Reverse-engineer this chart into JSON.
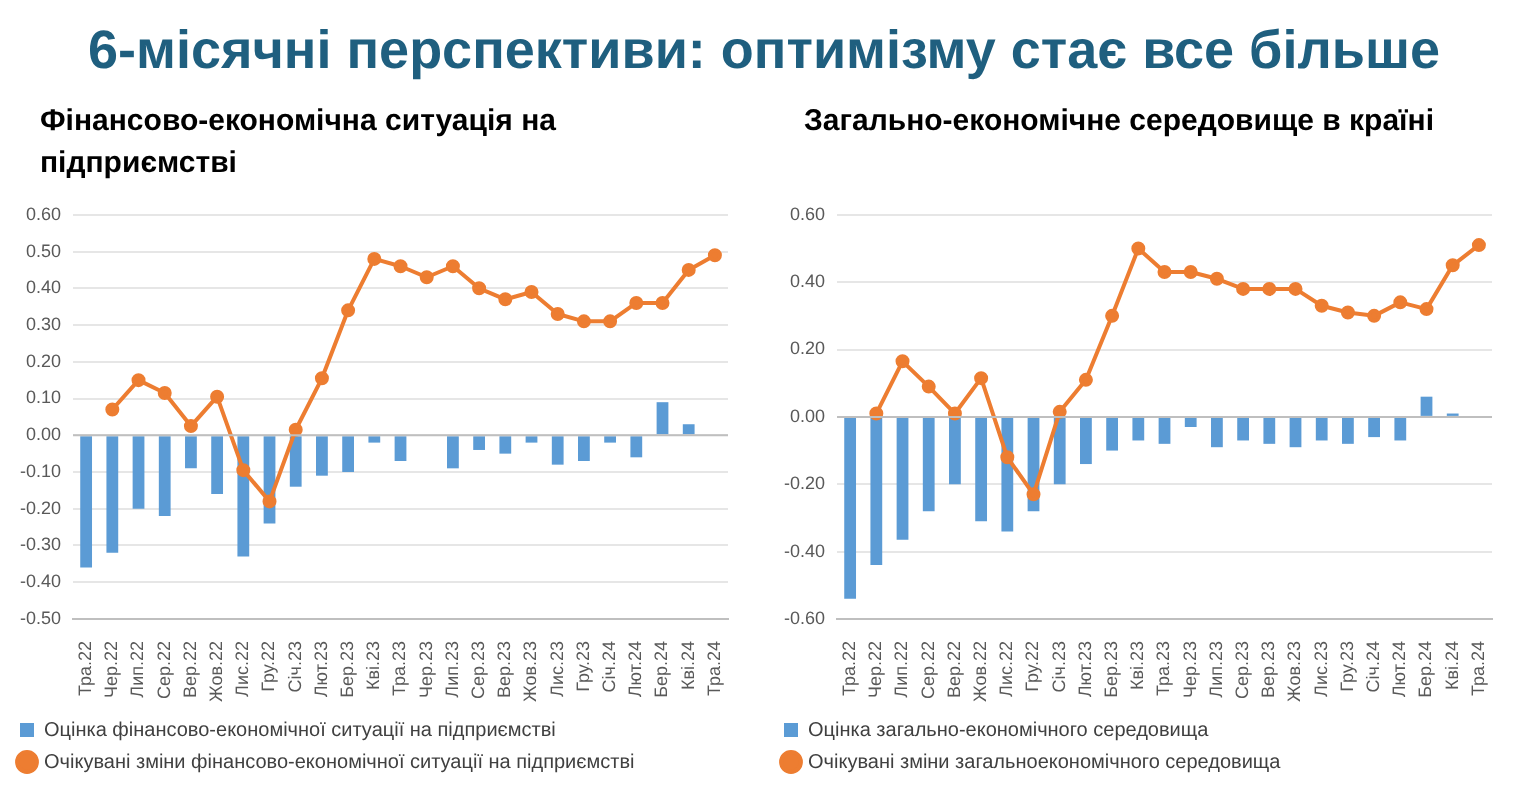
{
  "chart_data": [
    {
      "type": "bar",
      "title": "Фінансово-економічна ситуація на підприємстві",
      "annotations": [
        "6-місячні перспективи: оптимізму стає все більше"
      ],
      "categories": [
        "Тра.22",
        "Чер.22",
        "Лип.22",
        "Сер.22",
        "Вер.22",
        "Жов.22",
        "Лис.22",
        "Гру.22",
        "Січ.23",
        "Лют.23",
        "Бер.23",
        "Кві.23",
        "Тра.23",
        "Чер.23",
        "Лип.23",
        "Сер.23",
        "Вер.23",
        "Жов.23",
        "Лис.23",
        "Гру.23",
        "Січ.24",
        "Лют.24",
        "Бер.24",
        "Кві.24",
        "Тра.24"
      ],
      "series": [
        {
          "name": "Оцінка фінансово-економічної ситуації на підприємстві",
          "color": "#5b9bd5",
          "values": [
            -0.36,
            -0.32,
            -0.2,
            -0.22,
            -0.09,
            -0.16,
            -0.33,
            -0.24,
            -0.14,
            -0.11,
            -0.1,
            -0.02,
            -0.07,
            0,
            -0.09,
            -0.04,
            -0.05,
            -0.02,
            -0.08,
            -0.07,
            -0.02,
            -0.06,
            0.09,
            0.03,
            0
          ]
        },
        {
          "type": "line",
          "name": "Очікувані зміни фінансово-економічної ситуації на підприємстві",
          "color": "#ed7d31",
          "values": [
            null,
            0.07,
            0.15,
            0.115,
            0.025,
            0.105,
            -0.095,
            -0.18,
            0.015,
            0.155,
            0.34,
            0.48,
            0.46,
            0.43,
            0.46,
            0.4,
            0.37,
            0.39,
            0.33,
            0.31,
            0.31,
            0.36,
            0.36,
            0.45,
            0.49
          ]
        }
      ],
      "ylim": [
        -0.5,
        0.6
      ],
      "yticks": [
        {
          "value": -0.5,
          "label": "-0.50"
        },
        {
          "value": -0.4,
          "label": "-0.40"
        },
        {
          "value": -0.3,
          "label": "-0.30"
        },
        {
          "value": -0.2,
          "label": "-0.20"
        },
        {
          "value": -0.1,
          "label": "-0.10"
        },
        {
          "value": 0,
          "label": "0.00"
        },
        {
          "value": 0.1,
          "label": "0.10"
        },
        {
          "value": 0.2,
          "label": "0.20"
        },
        {
          "value": 0.3,
          "label": "0.30"
        },
        {
          "value": 0.4,
          "label": "0.40"
        },
        {
          "value": 0.5,
          "label": "0.50"
        },
        {
          "value": 0.6,
          "label": "0.60"
        }
      ],
      "grid": "y",
      "legend": "bottom",
      "marker": "circle",
      "line_style": "solid"
    },
    {
      "type": "bar",
      "title": "Загально-економічне середовище в країні",
      "categories": [
        "Тра.22",
        "Чер.22",
        "Лип.22",
        "Сер.22",
        "Вер.22",
        "Жов.22",
        "Лис.22",
        "Гру.22",
        "Січ.23",
        "Лют.23",
        "Бер.23",
        "Кві.23",
        "Тра.23",
        "Чер.23",
        "Лип.23",
        "Сер.23",
        "Вер.23",
        "Жов.23",
        "Лис.23",
        "Гру.23",
        "Січ.24",
        "Лют.24",
        "Бер.24",
        "Кві.24",
        "Тра.24"
      ],
      "series": [
        {
          "name": "Оцінка загально-економічного середовища",
          "color": "#5b9bd5",
          "values": [
            -0.54,
            -0.44,
            -0.365,
            -0.28,
            -0.2,
            -0.31,
            -0.34,
            -0.28,
            -0.2,
            -0.14,
            -0.1,
            -0.07,
            -0.08,
            -0.03,
            -0.09,
            -0.07,
            -0.08,
            -0.09,
            -0.07,
            -0.08,
            -0.06,
            -0.07,
            0.06,
            0.01,
            0
          ]
        },
        {
          "type": "line",
          "name": "Очікувані зміни загальноекономічного середовища",
          "color": "#ed7d31",
          "values": [
            null,
            0.01,
            0.165,
            0.09,
            0.01,
            0.115,
            -0.12,
            -0.23,
            0.015,
            0.11,
            0.3,
            0.5,
            0.43,
            0.43,
            0.41,
            0.38,
            0.38,
            0.38,
            0.33,
            0.31,
            0.3,
            0.34,
            0.32,
            0.45,
            0.51
          ]
        }
      ],
      "ylim": [
        -0.6,
        0.6
      ],
      "yticks": [
        {
          "value": -0.6,
          "label": "-0.60"
        },
        {
          "value": -0.4,
          "label": "-0.40"
        },
        {
          "value": -0.2,
          "label": "-0.20"
        },
        {
          "value": 0,
          "label": "0.00"
        },
        {
          "value": 0.2,
          "label": "0.20"
        },
        {
          "value": 0.4,
          "label": "0.40"
        },
        {
          "value": 0.6,
          "label": "0.60"
        }
      ],
      "grid": "y",
      "legend": "bottom",
      "marker": "circle",
      "line_style": "solid"
    }
  ]
}
